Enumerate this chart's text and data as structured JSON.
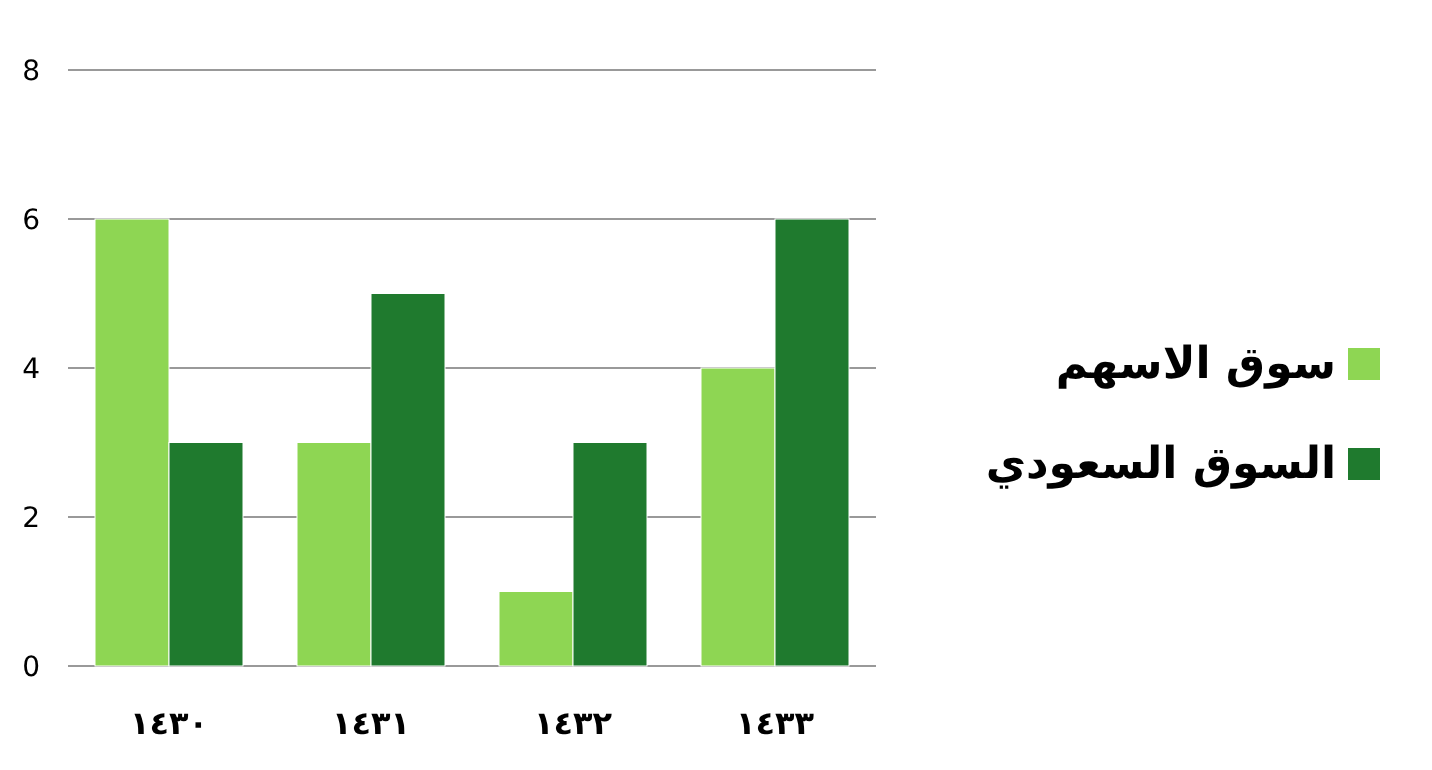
{
  "chart_data": {
    "type": "bar",
    "categories": [
      "١٤٣٠",
      "١٤٣١",
      "١٤٣٢",
      "١٤٣٣"
    ],
    "series": [
      {
        "name": "سوق الاسهم",
        "color": "#8ed653",
        "values": [
          6,
          3,
          1,
          4
        ]
      },
      {
        "name": "السوق السعودي",
        "color": "#1f7a2e",
        "values": [
          3,
          5,
          3,
          6
        ]
      }
    ],
    "ylim": [
      0,
      8
    ],
    "yticks": [
      0,
      2,
      4,
      6,
      8
    ],
    "grid": "y",
    "legend": "right"
  }
}
